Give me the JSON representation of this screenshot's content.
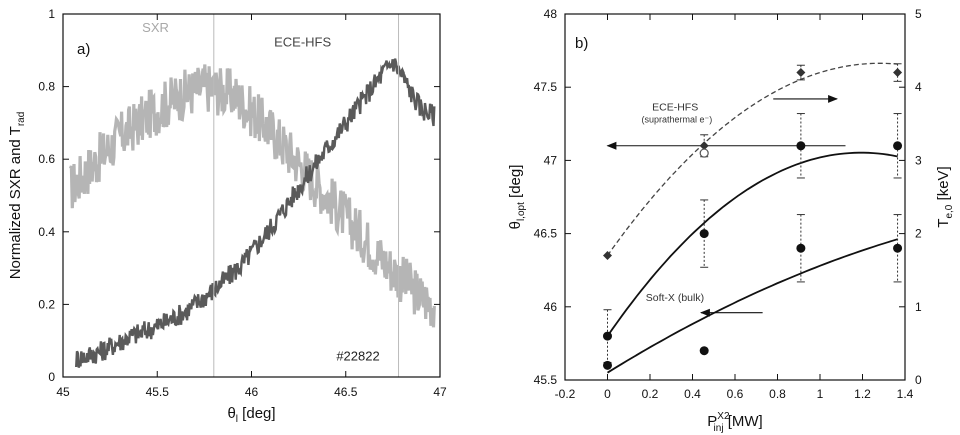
{
  "chart_data": [
    {
      "type": "line",
      "panel_label": "a)",
      "xlabel_main": "θ",
      "xlabel_sub": "l",
      "xlabel_tail": " [deg]",
      "ylabel_main": "Normalized SXR and T",
      "ylabel_sub": "rad",
      "xlim": [
        45,
        47
      ],
      "ylim": [
        0,
        1
      ],
      "xticks": [
        45,
        45.5,
        46,
        46.5,
        47
      ],
      "xtick_labels": [
        "45",
        "45.5",
        "46",
        "46.5",
        "47"
      ],
      "yticks": [
        0,
        0.2,
        0.4,
        0.6,
        0.8,
        1
      ],
      "ytick_labels": [
        "0",
        "0.2",
        "0.4",
        "0.6",
        "0.8",
        "1"
      ],
      "annotations": [
        {
          "text": "SXR",
          "x": 45.42,
          "y": 0.95,
          "color": "#a8a8a8"
        },
        {
          "text": "ECE-HFS",
          "x": 46.12,
          "y": 0.91,
          "color": "#444444"
        },
        {
          "text": "#22822",
          "x": 46.45,
          "y": 0.045,
          "color": "#222222"
        }
      ],
      "series": [
        {
          "name": "SXR",
          "color": "#b5b5b5",
          "noise": 0.07,
          "x": [
            45.04,
            45.15,
            45.3,
            45.45,
            45.6,
            45.75,
            45.9,
            46.0,
            46.1,
            46.2,
            46.3,
            46.4,
            46.5,
            46.6,
            46.7,
            46.8,
            46.9,
            46.97
          ],
          "y": [
            0.52,
            0.58,
            0.66,
            0.72,
            0.77,
            0.8,
            0.78,
            0.73,
            0.68,
            0.62,
            0.56,
            0.5,
            0.44,
            0.38,
            0.32,
            0.27,
            0.22,
            0.2
          ]
        },
        {
          "name": "ECE-HFS",
          "color": "#5a5a5a",
          "noise": 0.03,
          "x": [
            45.07,
            45.2,
            45.35,
            45.5,
            45.65,
            45.8,
            45.95,
            46.1,
            46.25,
            46.4,
            46.5,
            46.6,
            46.7,
            46.75,
            46.8,
            46.85,
            46.9,
            46.97
          ],
          "y": [
            0.05,
            0.07,
            0.11,
            0.14,
            0.18,
            0.24,
            0.31,
            0.41,
            0.52,
            0.63,
            0.7,
            0.77,
            0.84,
            0.87,
            0.83,
            0.78,
            0.74,
            0.72
          ]
        }
      ],
      "vlines": [
        45.8,
        46.78
      ]
    },
    {
      "type": "scatter",
      "panel_label": "b)",
      "xlabel_main": "P",
      "xlabel_sup": "X2",
      "xlabel_sub": "inj",
      "xlabel_tail": " [MW]",
      "ylabel_main": "θ",
      "ylabel_sub": "l,opt",
      "ylabel_tail": " [deg]",
      "y2label_main": "T",
      "y2label_sub": "e,0",
      "y2label_tail": " [keV]",
      "xlim": [
        -0.2,
        1.4
      ],
      "ylim": [
        45.5,
        48
      ],
      "y2lim": [
        0,
        5
      ],
      "xticks": [
        -0.2,
        0,
        0.2,
        0.4,
        0.6,
        0.8,
        1,
        1.2,
        1.4
      ],
      "xtick_labels": [
        "-0.2",
        "0",
        "0.2",
        "0.4",
        "0.6",
        "0.8",
        "1",
        "1.2",
        "1.4"
      ],
      "yticks": [
        45.5,
        46,
        46.5,
        47,
        47.5,
        48
      ],
      "ytick_labels": [
        "45.5",
        "46",
        "46.5",
        "47",
        "47.5",
        "48"
      ],
      "y2ticks": [
        0,
        1,
        2,
        3,
        4,
        5
      ],
      "y2tick_labels": [
        "0",
        "1",
        "2",
        "3",
        "4",
        "5"
      ],
      "annotations": [
        {
          "text": "ECE-HFS",
          "x": 0.21,
          "y": 47.34,
          "color": "#333333"
        },
        {
          "text": "(suprathermal e⁻)",
          "x": 0.16,
          "y": 47.26,
          "color": "#333333"
        },
        {
          "text": "Soft-X (bulk)",
          "x": 0.18,
          "y": 46.04,
          "color": "#333333"
        }
      ],
      "arrows": [
        {
          "from": [
            1.12,
            47.1
          ],
          "to": [
            0.0,
            47.1
          ]
        },
        {
          "from": [
            0.73,
            45.96
          ],
          "to": [
            0.44,
            45.96
          ]
        },
        {
          "from": [
            0.78,
            47.42
          ],
          "to": [
            1.08,
            47.42
          ]
        }
      ],
      "series": [
        {
          "name": "ECE-HFS",
          "axis": "y",
          "marker": "filled-circle",
          "x": [
            0,
            0.455,
            0.91,
            1.365
          ],
          "y": [
            45.8,
            46.5,
            47.1,
            47.1
          ],
          "err": [
            0.18,
            0.23,
            0.22,
            0.22
          ],
          "fit": {
            "a": 45.8,
            "b": 2.1,
            "c": -0.88,
            "xmax": 1.365
          }
        },
        {
          "name": "Soft-X",
          "axis": "y",
          "marker": "filled-circle",
          "x": [
            0,
            0.455,
            0.91,
            1.365
          ],
          "y": [
            45.6,
            45.7,
            46.4,
            46.4
          ],
          "err": [
            0.0,
            0.0,
            0.23,
            0.23
          ],
          "fit": {
            "a": 45.55,
            "b": 0.9,
            "c": -0.17,
            "xmax": 1.365
          }
        },
        {
          "name": "T_e0",
          "axis": "y2",
          "marker": "filled-diamond",
          "x": [
            0,
            0.455,
            0.91,
            1.365
          ],
          "y": [
            1.7,
            3.2,
            4.2,
            4.2
          ],
          "err": [
            0.0,
            0.15,
            0.1,
            0.12
          ],
          "dashed_fit": {
            "a": 1.7,
            "b": 4.1,
            "c": -1.6,
            "xmax": 1.365
          }
        }
      ],
      "hollow_markers": [
        {
          "x": 0.455,
          "y": 47.05
        }
      ]
    }
  ]
}
